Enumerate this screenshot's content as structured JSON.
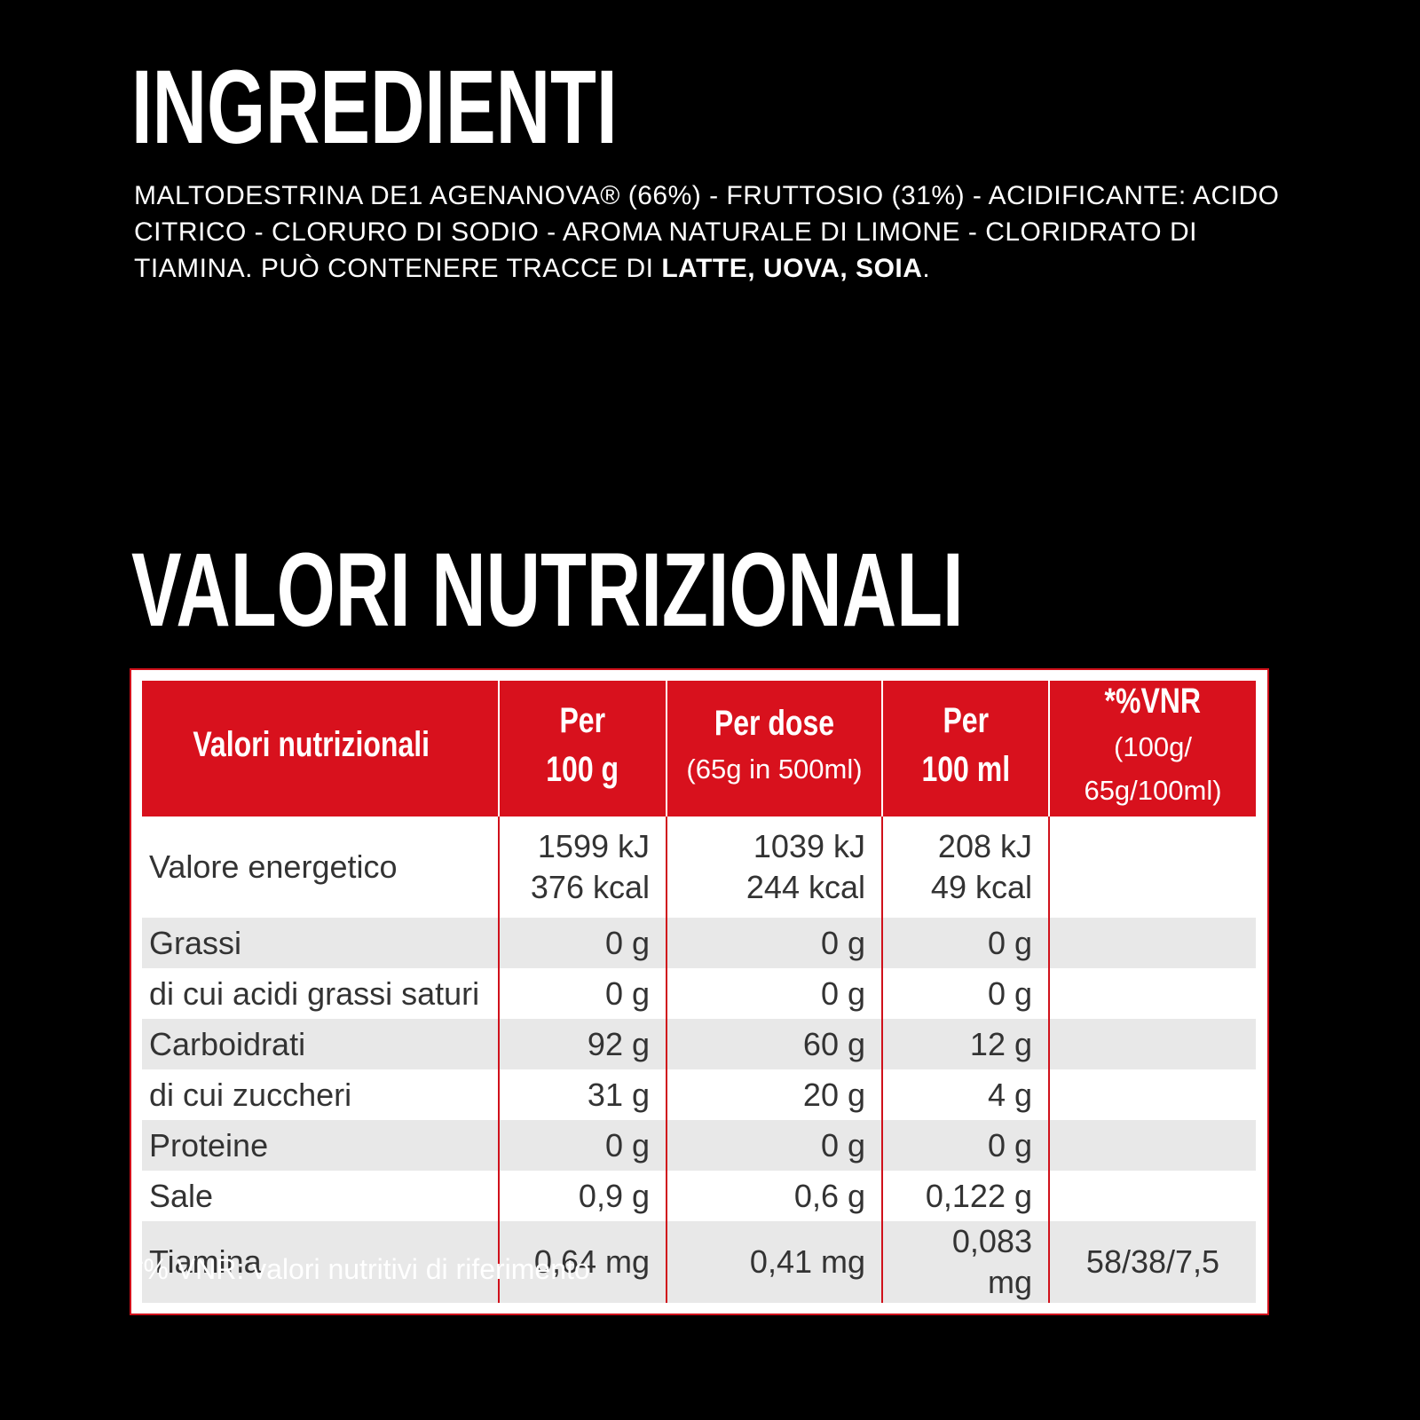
{
  "ingredients": {
    "title": "INGREDIENTI",
    "text": "MALTODESTRINA DE1 AGENANOVA® (66%) - FRUTTOSIO (31%) - ACIDIFICANTE: ACIDO CITRICO - CLORURO DI SODIO - AROMA NATURALE DI LIMONE - CLORIDRATO DI TIAMINA. PUÒ CONTENERE TRACCE DI ",
    "allergens": "LATTE, UOVA, SOIA",
    "end": "."
  },
  "nutrition": {
    "title": "VALORI NUTRIZIONALI",
    "table": {
      "header": [
        {
          "main": [
            "Valori nutrizionali"
          ]
        },
        {
          "main": [
            "Per",
            "100 g"
          ]
        },
        {
          "main": [
            "Per dose"
          ],
          "sub": "(65g in 500ml)"
        },
        {
          "main": [
            "Per",
            "100 ml"
          ]
        },
        {
          "main": [
            "*%VNR"
          ],
          "sub": "(100g/ 65g/100ml)"
        }
      ],
      "rows": [
        {
          "label": "Valore energetico",
          "values": [
            [
              "1599 kJ",
              "376 kcal"
            ],
            [
              "1039 kJ",
              "244 kcal"
            ],
            [
              "208 kJ",
              "49 kcal"
            ]
          ]
        },
        {
          "label": "Grassi",
          "values": [
            [
              "0 g"
            ],
            [
              "0 g"
            ],
            [
              "0 g"
            ]
          ]
        },
        {
          "label": "di cui acidi grassi saturi",
          "values": [
            [
              "0 g"
            ],
            [
              "0 g"
            ],
            [
              "0 g"
            ]
          ]
        },
        {
          "label": "Carboidrati",
          "values": [
            [
              "92 g"
            ],
            [
              "60 g"
            ],
            [
              "12 g"
            ]
          ]
        },
        {
          "label": "di cui zuccheri",
          "values": [
            [
              "31 g"
            ],
            [
              "20 g"
            ],
            [
              "4 g"
            ]
          ]
        },
        {
          "label": "Proteine",
          "values": [
            [
              "0 g"
            ],
            [
              "0 g"
            ],
            [
              "0 g"
            ]
          ]
        },
        {
          "label": "Sale",
          "values": [
            [
              "0,9 g"
            ],
            [
              "0,6 g"
            ],
            [
              "0,122 g"
            ]
          ]
        },
        {
          "label": "Tiamina",
          "values": [
            [
              "0,64 mg"
            ],
            [
              "0,41 mg"
            ],
            [
              "0,083 mg"
            ],
            [
              "58/38/7,5"
            ]
          ]
        }
      ]
    },
    "footnote": "*% VNR: valori nutritivi di riferimento"
  }
}
